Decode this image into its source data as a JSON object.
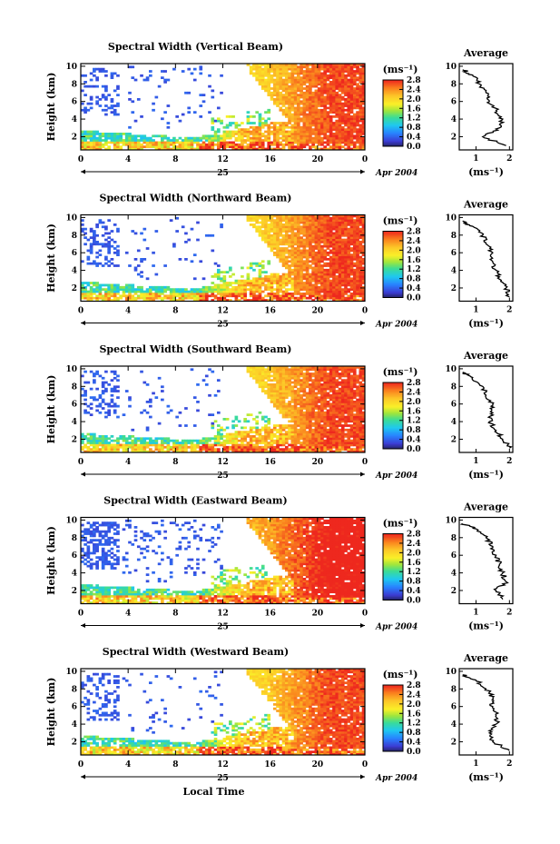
{
  "figure": {
    "xaxis_label": "Local Time",
    "date_day": "25",
    "date_monthyear": "Apr 2004",
    "yaxis_label": "Height (km)",
    "colorbar_unit": "(ms⁻¹)",
    "colorbar_ticks": [
      "0.0",
      "0.4",
      "0.8",
      "1.2",
      "1.6",
      "2.0",
      "2.4",
      "2.8"
    ],
    "avg_title": "Average",
    "avg_xlabel": "(ms⁻¹)"
  },
  "chart_data": [
    {
      "type": "heatmap",
      "title": "Spectral Width (Vertical Beam)",
      "xlabel": "25",
      "ylabel": "Height (km)",
      "x_ticks": [
        "0",
        "4",
        "8",
        "12",
        "16",
        "20",
        "0"
      ],
      "y_ticks": [
        "2",
        "4",
        "6",
        "8",
        "10"
      ],
      "xlim": [
        0,
        24
      ],
      "ylim": [
        0.5,
        10.3
      ],
      "colorbar": {
        "label": "(ms⁻¹)",
        "range": [
          0.0,
          2.8
        ]
      },
      "profile": {
        "title": "Average",
        "x_ticks": [
          "1",
          "2"
        ],
        "xlim": [
          0.5,
          2.1
        ],
        "heights": [
          1,
          2,
          3,
          4,
          5,
          6,
          7,
          8,
          9,
          9.6
        ],
        "values": [
          1.9,
          1.2,
          1.7,
          1.8,
          1.6,
          1.4,
          1.3,
          1.1,
          0.9,
          0.6
        ]
      }
    },
    {
      "type": "heatmap",
      "title": "Spectral Width (Northward Beam)",
      "xlabel": "25",
      "ylabel": "Height (km)",
      "x_ticks": [
        "0",
        "4",
        "8",
        "12",
        "16",
        "20",
        "0"
      ],
      "y_ticks": [
        "2",
        "4",
        "6",
        "8",
        "10"
      ],
      "xlim": [
        0,
        24
      ],
      "ylim": [
        0.5,
        10.3
      ],
      "colorbar": {
        "label": "(ms⁻¹)",
        "range": [
          0.0,
          2.8
        ]
      },
      "profile": {
        "title": "Average",
        "x_ticks": [
          "1",
          "2"
        ],
        "xlim": [
          0.5,
          2.1
        ],
        "heights": [
          1,
          2,
          3,
          4,
          5,
          6,
          7,
          8,
          9,
          9.6
        ],
        "values": [
          2.0,
          1.9,
          1.7,
          1.6,
          1.5,
          1.5,
          1.3,
          1.2,
          0.9,
          0.6
        ]
      }
    },
    {
      "type": "heatmap",
      "title": "Spectral Width (Southward Beam)",
      "xlabel": "25",
      "ylabel": "Height (km)",
      "x_ticks": [
        "0",
        "4",
        "8",
        "12",
        "16",
        "20",
        "0"
      ],
      "y_ticks": [
        "2",
        "4",
        "6",
        "8",
        "10"
      ],
      "xlim": [
        0,
        24
      ],
      "ylim": [
        0.5,
        10.3
      ],
      "colorbar": {
        "label": "(ms⁻¹)",
        "range": [
          0.0,
          2.8
        ]
      },
      "profile": {
        "title": "Average",
        "x_ticks": [
          "1",
          "2"
        ],
        "xlim": [
          0.5,
          2.1
        ],
        "heights": [
          1,
          2,
          3,
          4,
          5,
          6,
          7,
          8,
          9,
          9.6
        ],
        "values": [
          2.0,
          1.8,
          1.6,
          1.4,
          1.5,
          1.5,
          1.3,
          1.2,
          0.9,
          0.6
        ]
      }
    },
    {
      "type": "heatmap",
      "title": "Spectral Width (Eastward Beam)",
      "xlabel": "25",
      "ylabel": "Height (km)",
      "x_ticks": [
        "0",
        "4",
        "8",
        "12",
        "16",
        "20",
        "0"
      ],
      "y_ticks": [
        "2",
        "4",
        "6",
        "8",
        "10"
      ],
      "xlim": [
        0,
        24
      ],
      "ylim": [
        0.5,
        10.3
      ],
      "colorbar": {
        "label": "(ms⁻¹)",
        "range": [
          0.0,
          2.8
        ]
      },
      "profile": {
        "title": "Average",
        "x_ticks": [
          "1",
          "2"
        ],
        "xlim": [
          0.5,
          2.1
        ],
        "heights": [
          1,
          2,
          3,
          4,
          5,
          6,
          7,
          8,
          9,
          9.6
        ],
        "values": [
          1.8,
          1.6,
          1.9,
          1.8,
          1.7,
          1.6,
          1.5,
          1.3,
          1.0,
          0.6
        ]
      }
    },
    {
      "type": "heatmap",
      "title": "Spectral Width (Westward Beam)",
      "xlabel": "25",
      "ylabel": "Height (km)",
      "x_ticks": [
        "0",
        "4",
        "8",
        "12",
        "16",
        "20",
        "0"
      ],
      "y_ticks": [
        "2",
        "4",
        "6",
        "8",
        "10"
      ],
      "xlim": [
        0,
        24
      ],
      "ylim": [
        0.5,
        10.3
      ],
      "colorbar": {
        "label": "(ms⁻¹)",
        "range": [
          0.0,
          2.8
        ]
      },
      "profile": {
        "title": "Average",
        "x_ticks": [
          "1",
          "2"
        ],
        "xlim": [
          0.5,
          2.1
        ],
        "heights": [
          1,
          2,
          3,
          4,
          5,
          6,
          7,
          8,
          9,
          9.6
        ],
        "values": [
          2.0,
          1.5,
          1.4,
          1.6,
          1.6,
          1.5,
          1.5,
          1.3,
          1.0,
          0.6
        ]
      }
    }
  ]
}
